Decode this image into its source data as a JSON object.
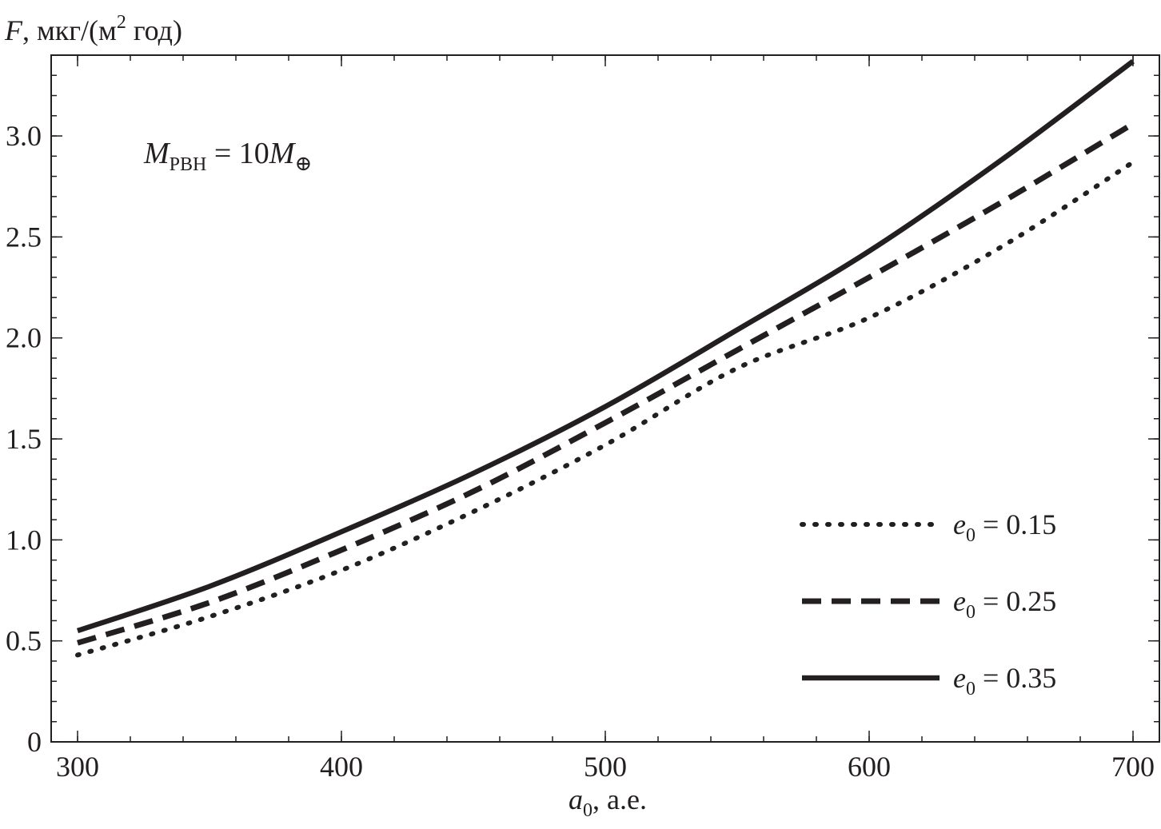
{
  "chart_data": {
    "type": "line",
    "y_axis_label": {
      "var": "F",
      "unit_pre": ", мкг/(м",
      "unit_sup": "2",
      "unit_post": " год)"
    },
    "x_axis_label": {
      "var": "a",
      "sub": "0",
      "unit": ", а.е."
    },
    "annotation": {
      "var": "M",
      "sub": "PBH",
      "eq": " = 10",
      "var2": "M",
      "sub2": "⊕"
    },
    "xlim": [
      290,
      710
    ],
    "ylim": [
      0,
      3.4
    ],
    "x_ticks": [
      "300",
      "400",
      "500",
      "600",
      "700"
    ],
    "y_ticks": [
      "0",
      "0.5",
      "1.0",
      "1.5",
      "2.0",
      "2.5",
      "3.0"
    ],
    "x_minor_step": 20,
    "y_minor_step": 0.1,
    "legend_position": "bottom-right",
    "series": [
      {
        "name_var": "e",
        "name_sub": "0",
        "name_eq": " = 0.15",
        "style": "dotted",
        "x": [
          300,
          350,
          400,
          450,
          500,
          550,
          600,
          650,
          700
        ],
        "values": [
          0.43,
          0.62,
          0.85,
          1.14,
          1.47,
          1.85,
          2.1,
          2.45,
          2.87
        ]
      },
      {
        "name_var": "e",
        "name_sub": "0",
        "name_eq": " = 0.25",
        "style": "dashed",
        "x": [
          300,
          350,
          400,
          450,
          500,
          550,
          600,
          650,
          700
        ],
        "values": [
          0.49,
          0.69,
          0.95,
          1.24,
          1.58,
          1.94,
          2.3,
          2.67,
          3.06
        ]
      },
      {
        "name_var": "e",
        "name_sub": "0",
        "name_eq": " = 0.35",
        "style": "solid",
        "x": [
          300,
          350,
          400,
          450,
          500,
          550,
          600,
          650,
          700
        ],
        "values": [
          0.55,
          0.77,
          1.04,
          1.33,
          1.66,
          2.04,
          2.43,
          2.88,
          3.37
        ]
      }
    ],
    "colors": {
      "line": "#231f20",
      "frame": "#231f20"
    }
  }
}
